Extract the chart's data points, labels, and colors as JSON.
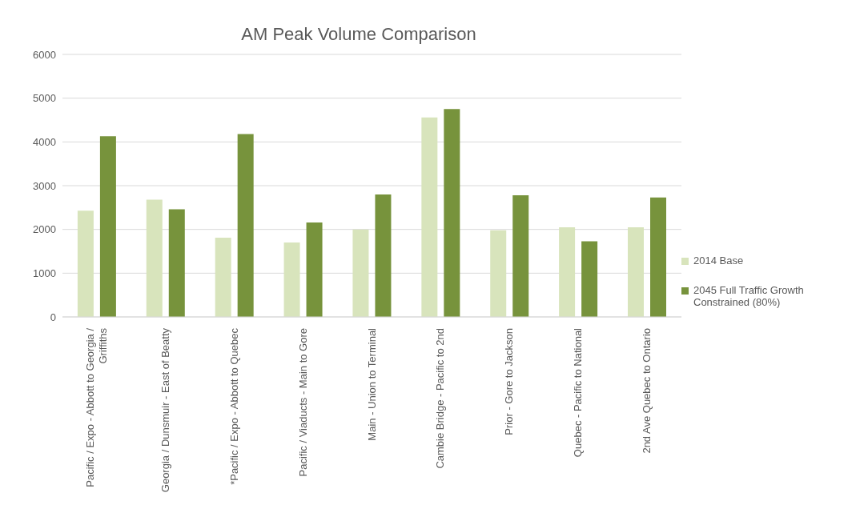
{
  "chart_data": {
    "type": "bar",
    "title": "AM Peak Volume Comparison",
    "categories": [
      "Pacific / Expo - Abbott to Georgia / Griffiths",
      "Georgia / Dunsmuir - East of Beatty",
      "*Pacific / Expo - Abbott to Quebec",
      "Pacific / Viaducts - Main to Gore",
      "Main - Union to Terminal",
      "Cambie Bridge - Pacific to 2nd",
      "Prior - Gore to Jackson",
      "Quebec - Pacific to National",
      "2nd Ave Quebec to Ontario"
    ],
    "series": [
      {
        "name": "2014 Base",
        "color": "#d8e4bc",
        "values": [
          2430,
          2680,
          1810,
          1700,
          2000,
          4560,
          1980,
          2050,
          2050
        ]
      },
      {
        "name": "2045 Full Traffic Growth Constrained (80%)",
        "color": "#77933c",
        "values": [
          4130,
          2460,
          4180,
          2160,
          2800,
          4750,
          2780,
          1730,
          2730
        ]
      }
    ],
    "ylim": [
      0,
      6000
    ],
    "yticks": [
      0,
      1000,
      2000,
      3000,
      4000,
      5000,
      6000
    ],
    "grid": "y",
    "legend": "right"
  }
}
